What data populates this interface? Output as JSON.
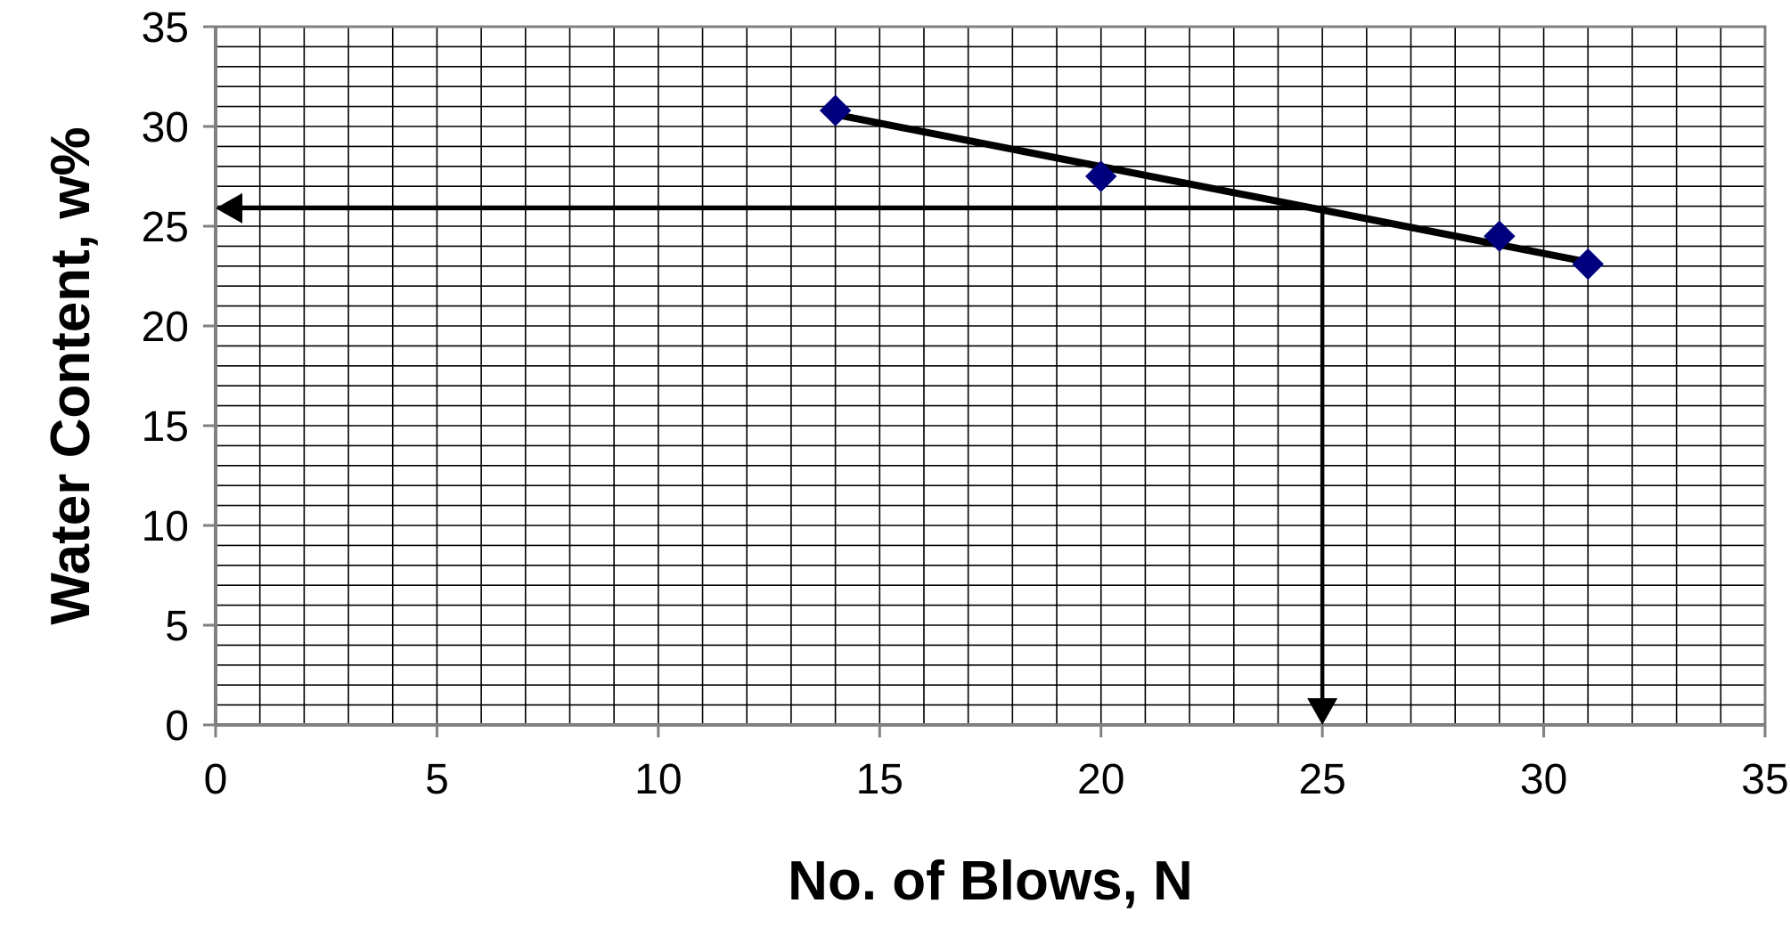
{
  "chart_data": {
    "type": "scatter",
    "title": "",
    "xlabel": "No. of Blows, N",
    "ylabel": "Water Content, w%",
    "xlim": [
      0,
      35
    ],
    "ylim": [
      0,
      35
    ],
    "x_ticks": [
      "0",
      "5",
      "10",
      "15",
      "20",
      "25",
      "30",
      "35"
    ],
    "y_ticks": [
      "0",
      "5",
      "10",
      "15",
      "20",
      "25",
      "30",
      "35"
    ],
    "grid": true,
    "minor_grid_x": 1,
    "minor_grid_y": 1,
    "legend": "none",
    "series": [
      {
        "marker": "diamond",
        "color": "#00007f",
        "points": [
          {
            "x": 14,
            "y": 30.8
          },
          {
            "x": 20,
            "y": 27.5
          },
          {
            "x": 29,
            "y": 24.5
          },
          {
            "x": 31,
            "y": 23.1
          }
        ]
      }
    ],
    "trendline": {
      "color": "#000000",
      "from": {
        "x": 14,
        "y": 30.6
      },
      "to": {
        "x": 31,
        "y": 23.2
      }
    },
    "reference_arrows": [
      {
        "from": {
          "x": 25,
          "y": 25.9
        },
        "to": {
          "x": 0,
          "y": 25.9
        }
      },
      {
        "from": {
          "x": 25,
          "y": 25.9
        },
        "to": {
          "x": 25,
          "y": 0
        }
      }
    ]
  }
}
